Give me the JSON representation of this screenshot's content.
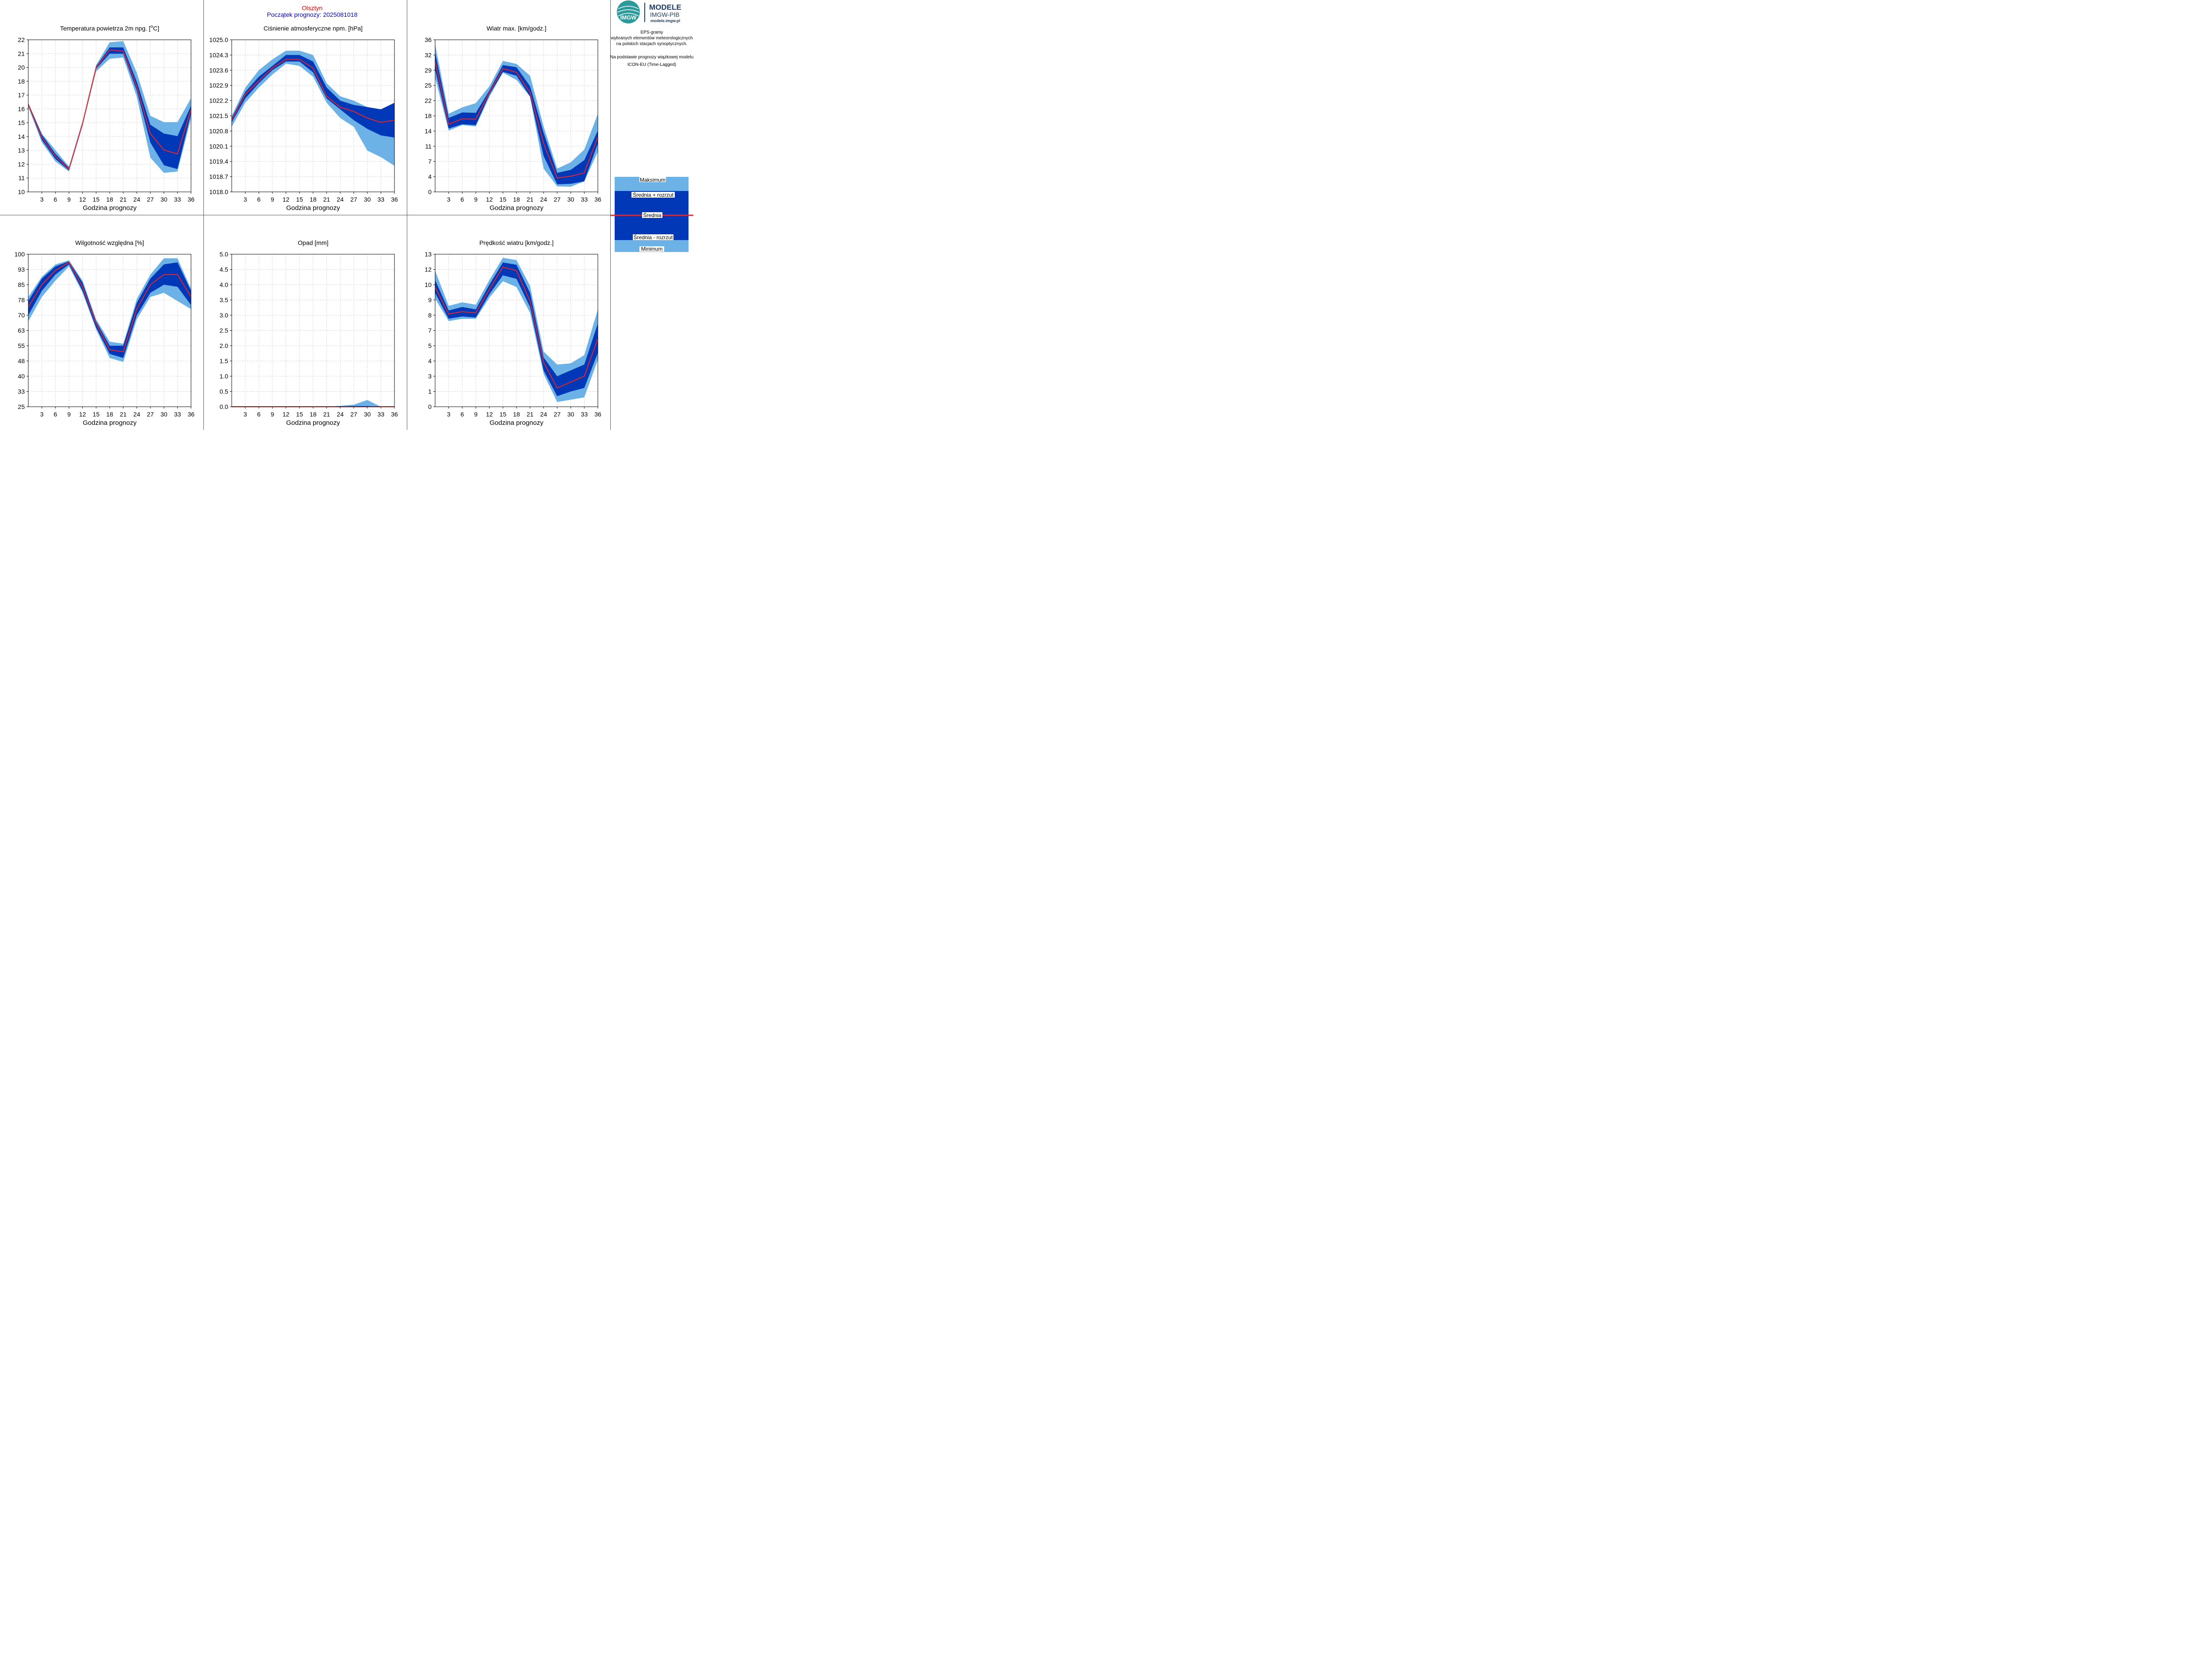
{
  "header": {
    "city": "Olsztyn",
    "start": "Początek prognozy: 2025081018"
  },
  "logo": {
    "badge_text": "IMGW",
    "title": "MODELE",
    "subtitle": "IMGW-PIB",
    "url": "modele.imgw.pl"
  },
  "sidebar": {
    "lines": [
      "EPS-gramy",
      "wybranych elementów meteorologicznych",
      "na polskich stacjach  synoptycznych.",
      "",
      "Na podstawie prognozy wiązkowej modelu",
      "ICON-EU (Time-Lagged)"
    ]
  },
  "legend": {
    "max": "Maksimum",
    "mean_plus": "Średnia + rozrzut",
    "mean": "Średnia",
    "mean_minus": "Średnia - rozrzut",
    "min": "Minimum"
  },
  "colors": {
    "outer_band": "#6cb2e6",
    "inner_band": "#0038b8",
    "mean_line": "#e8262a",
    "grid": "#c8c8c8"
  },
  "chart_data": [
    {
      "type": "area",
      "title": "Temperatura powietrza 2m npg. [°C]",
      "xlabel": "Godzina prognozy",
      "x": [
        0,
        3,
        6,
        9,
        12,
        15,
        18,
        21,
        24,
        27,
        30,
        33,
        36
      ],
      "xticks": [
        "3",
        "6",
        "9",
        "12",
        "15",
        "18",
        "21",
        "24",
        "27",
        "30",
        "33",
        "36"
      ],
      "ylim": [
        10,
        22
      ],
      "yticks": [
        "10",
        "11",
        "12",
        "13",
        "14",
        "15",
        "16",
        "17",
        "18",
        "20",
        "21",
        "22"
      ],
      "series": [
        {
          "role": "min",
          "values": [
            16.7,
            13.9,
            12.4,
            11.6,
            15.2,
            19.5,
            20.5,
            20.6,
            17.5,
            12.7,
            11.5,
            11.6,
            15.8
          ]
        },
        {
          "role": "mean_minus",
          "values": [
            16.8,
            14.1,
            12.6,
            11.7,
            15.3,
            19.7,
            20.9,
            20.9,
            18.0,
            13.9,
            12.1,
            11.8,
            16.2
          ]
        },
        {
          "role": "mean",
          "values": [
            16.9,
            14.3,
            12.8,
            11.8,
            15.4,
            19.8,
            21.2,
            21.1,
            18.3,
            14.6,
            13.3,
            13.0,
            16.5
          ]
        },
        {
          "role": "mean_plus",
          "values": [
            17.0,
            14.5,
            13.0,
            11.9,
            15.5,
            19.9,
            21.4,
            21.4,
            18.7,
            15.3,
            14.6,
            14.4,
            16.8
          ]
        },
        {
          "role": "max",
          "values": [
            17.0,
            14.6,
            13.3,
            12.0,
            15.6,
            20.0,
            21.8,
            21.9,
            19.4,
            16.0,
            15.5,
            15.5,
            17.4
          ]
        }
      ]
    },
    {
      "type": "area",
      "title": "Ciśnienie atmosferyczne npm. [hPa]",
      "xlabel": "Godzina prognozy",
      "x": [
        0,
        3,
        6,
        9,
        12,
        15,
        18,
        21,
        24,
        27,
        30,
        33,
        36
      ],
      "xticks": [
        "3",
        "6",
        "9",
        "12",
        "15",
        "18",
        "21",
        "24",
        "27",
        "30",
        "33",
        "36"
      ],
      "ylim": [
        1018.0,
        1025.0
      ],
      "yticks": [
        "1018.0",
        "1018.7",
        "1019.4",
        "1020.1",
        "1020.8",
        "1021.5",
        "1022.2",
        "1022.9",
        "1023.6",
        "1024.3",
        "1025.0"
      ],
      "series": [
        {
          "role": "min",
          "values": [
            1021.0,
            1022.1,
            1022.8,
            1023.4,
            1023.9,
            1023.8,
            1023.3,
            1022.1,
            1021.4,
            1021.0,
            1019.9,
            1019.6,
            1019.2
          ]
        },
        {
          "role": "mean_minus",
          "values": [
            1021.2,
            1022.3,
            1023.0,
            1023.6,
            1024.0,
            1024.0,
            1023.5,
            1022.3,
            1021.8,
            1021.3,
            1020.9,
            1020.6,
            1020.5
          ]
        },
        {
          "role": "mean",
          "values": [
            1021.3,
            1022.5,
            1023.1,
            1023.7,
            1024.1,
            1024.1,
            1023.7,
            1022.4,
            1021.9,
            1021.7,
            1021.4,
            1021.2,
            1021.3
          ]
        },
        {
          "role": "mean_plus",
          "values": [
            1021.4,
            1022.6,
            1023.3,
            1023.8,
            1024.3,
            1024.3,
            1024.0,
            1022.8,
            1022.2,
            1022.0,
            1021.9,
            1021.8,
            1022.1
          ]
        },
        {
          "role": "max",
          "values": [
            1021.5,
            1022.8,
            1023.6,
            1024.1,
            1024.5,
            1024.5,
            1024.3,
            1023.0,
            1022.4,
            1022.2,
            1021.9,
            1021.8,
            1022.1
          ]
        }
      ]
    },
    {
      "type": "area",
      "title": "Wiatr max. [km/godz.]",
      "xlabel": "Godzina prognozy",
      "x": [
        0,
        3,
        6,
        9,
        12,
        15,
        18,
        21,
        24,
        27,
        30,
        33,
        36
      ],
      "xticks": [
        "3",
        "6",
        "9",
        "12",
        "15",
        "18",
        "21",
        "24",
        "27",
        "30",
        "33",
        "36"
      ],
      "ylim": [
        0,
        36
      ],
      "yticks": [
        "0",
        "4",
        "7",
        "11",
        "14",
        "18",
        "22",
        "25",
        "29",
        "32",
        "36"
      ],
      "series": [
        {
          "role": "min",
          "values": [
            27.0,
            14.5,
            15.8,
            15.5,
            22.5,
            28.2,
            26.5,
            22.5,
            5.5,
            1.3,
            1.2,
            2.5,
            9.5
          ]
        },
        {
          "role": "mean_minus",
          "values": [
            29.0,
            15.0,
            16.0,
            15.8,
            23.0,
            28.4,
            27.5,
            22.6,
            8.5,
            1.8,
            1.9,
            2.5,
            11.5
          ]
        },
        {
          "role": "mean",
          "values": [
            31.0,
            16.0,
            17.3,
            17.2,
            23.5,
            29.2,
            28.3,
            23.5,
            11.5,
            3.3,
            3.7,
            4.5,
            13.0
          ]
        },
        {
          "role": "mean_plus",
          "values": [
            33.0,
            17.5,
            18.8,
            18.7,
            24.0,
            30.0,
            29.5,
            25.0,
            14.0,
            4.5,
            5.2,
            7.5,
            14.5
          ]
        },
        {
          "role": "max",
          "values": [
            35.0,
            18.5,
            20.0,
            21.0,
            25.0,
            31.0,
            30.3,
            27.5,
            15.5,
            5.5,
            7.0,
            10.0,
            18.5
          ]
        }
      ]
    },
    {
      "type": "area",
      "title": "Wilgotność względna [%]",
      "xlabel": "Godzina prognozy",
      "x": [
        0,
        3,
        6,
        9,
        12,
        15,
        18,
        21,
        24,
        27,
        30,
        33,
        36
      ],
      "xticks": [
        "3",
        "6",
        "9",
        "12",
        "15",
        "18",
        "21",
        "24",
        "27",
        "30",
        "33",
        "36"
      ],
      "ylim": [
        25,
        100
      ],
      "yticks": [
        "25",
        "33",
        "40",
        "48",
        "55",
        "63",
        "70",
        "78",
        "85",
        "93",
        "100"
      ],
      "series": [
        {
          "role": "min",
          "values": [
            67.0,
            79.0,
            87.0,
            94.0,
            81.0,
            63.0,
            49.0,
            47.0,
            68.0,
            79.0,
            81.0,
            77.0,
            73.0
          ]
        },
        {
          "role": "mean_minus",
          "values": [
            70.0,
            82.0,
            90.0,
            95.0,
            82.0,
            64.0,
            51.0,
            49.0,
            70.0,
            81.0,
            85.0,
            84.0,
            75.0
          ]
        },
        {
          "role": "mean",
          "values": [
            74.0,
            85.0,
            92.0,
            96.0,
            84.0,
            66.0,
            53.0,
            52.0,
            73.0,
            85.0,
            90.0,
            90.0,
            79.0
          ]
        },
        {
          "role": "mean_plus",
          "values": [
            77.0,
            88.0,
            94.0,
            96.5,
            86.0,
            67.0,
            55.0,
            55.0,
            76.0,
            88.0,
            95.0,
            96.0,
            82.0
          ]
        },
        {
          "role": "max",
          "values": [
            79.0,
            89.0,
            95.0,
            97.0,
            87.0,
            68.0,
            57.0,
            56.0,
            78.0,
            90.0,
            98.0,
            98.0,
            83.0
          ]
        }
      ]
    },
    {
      "type": "area",
      "title": "Opad [mm]",
      "xlabel": "Godzina prognozy",
      "x": [
        0,
        3,
        6,
        9,
        12,
        15,
        18,
        21,
        24,
        27,
        30,
        33,
        36
      ],
      "xticks": [
        "3",
        "6",
        "9",
        "12",
        "15",
        "18",
        "21",
        "24",
        "27",
        "30",
        "33",
        "36"
      ],
      "ylim": [
        0.0,
        5.0
      ],
      "yticks": [
        "0.0",
        "0.5",
        "1.0",
        "1.5",
        "2.0",
        "2.5",
        "3.0",
        "3.5",
        "4.0",
        "4.5",
        "5.0"
      ],
      "series": [
        {
          "role": "min",
          "values": [
            0,
            0,
            0,
            0,
            0,
            0,
            0,
            0,
            0,
            0,
            0,
            0,
            0
          ]
        },
        {
          "role": "mean_minus",
          "values": [
            0,
            0,
            0,
            0,
            0,
            0,
            0,
            0,
            0,
            0,
            0,
            0,
            0
          ]
        },
        {
          "role": "mean",
          "values": [
            0,
            0,
            0,
            0,
            0,
            0,
            0,
            0,
            0,
            0,
            0,
            0,
            0
          ]
        },
        {
          "role": "mean_plus",
          "values": [
            0,
            0,
            0,
            0,
            0,
            0,
            0,
            0,
            0.01,
            0.02,
            0.02,
            0,
            0
          ]
        },
        {
          "role": "max",
          "values": [
            0,
            0,
            0,
            0,
            0,
            0,
            0,
            0,
            0.03,
            0.07,
            0.22,
            0,
            0
          ]
        }
      ]
    },
    {
      "type": "area",
      "title": "Prędkość wiatru [km/godz.]",
      "xlabel": "Godzina prognozy",
      "x": [
        0,
        3,
        6,
        9,
        12,
        15,
        18,
        21,
        24,
        27,
        30,
        33,
        36
      ],
      "xticks": [
        "3",
        "6",
        "9",
        "12",
        "15",
        "18",
        "21",
        "24",
        "27",
        "30",
        "33",
        "36"
      ],
      "ylim": [
        0,
        13
      ],
      "yticks": [
        "0",
        "1",
        "3",
        "4",
        "5",
        "7",
        "8",
        "9",
        "10",
        "12",
        "13"
      ],
      "series": [
        {
          "role": "min",
          "values": [
            9.2,
            7.3,
            7.5,
            7.5,
            9.3,
            10.7,
            10.2,
            8.0,
            2.8,
            0.4,
            0.6,
            0.8,
            4.0
          ]
        },
        {
          "role": "mean_minus",
          "values": [
            9.7,
            7.5,
            7.7,
            7.6,
            9.6,
            11.2,
            10.9,
            8.5,
            3.1,
            0.9,
            1.3,
            1.6,
            4.6
          ]
        },
        {
          "role": "mean",
          "values": [
            10.2,
            7.9,
            8.1,
            8.0,
            10.0,
            11.9,
            11.6,
            9.0,
            3.8,
            1.6,
            2.1,
            2.6,
            5.8
          ]
        },
        {
          "role": "mean_plus",
          "values": [
            10.8,
            8.2,
            8.5,
            8.3,
            10.4,
            12.3,
            12.1,
            9.7,
            4.2,
            2.6,
            3.1,
            3.6,
            7.1
          ]
        },
        {
          "role": "max",
          "values": [
            11.6,
            8.6,
            8.9,
            8.7,
            10.8,
            12.7,
            12.5,
            10.3,
            4.7,
            3.6,
            3.7,
            4.4,
            8.3
          ]
        }
      ]
    }
  ]
}
